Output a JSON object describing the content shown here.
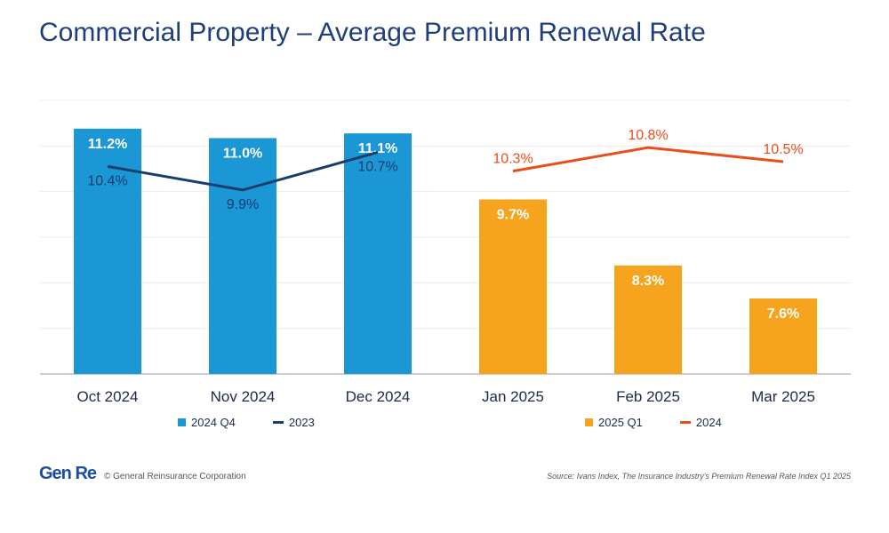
{
  "chart_data": {
    "type": "bar",
    "title": "Commercial Property – Average Premium Renewal Rate",
    "categories": [
      "Oct 2024",
      "Nov 2024",
      "Dec 2024",
      "Jan 2025",
      "Feb 2025",
      "Mar 2025"
    ],
    "ylim": [
      6.0,
      11.8
    ],
    "grid": true,
    "series": [
      {
        "name": "2024 Q4",
        "kind": "bar",
        "color": "#1b97d6",
        "values": [
          11.2,
          11.0,
          11.1,
          null,
          null,
          null
        ],
        "labels": [
          "11.2%",
          "11.0%",
          "11.1%",
          null,
          null,
          null
        ]
      },
      {
        "name": "2025 Q1",
        "kind": "bar",
        "color": "#f6a31e",
        "values": [
          null,
          null,
          null,
          9.7,
          8.3,
          7.6
        ],
        "labels": [
          null,
          null,
          null,
          "9.7%",
          "8.3%",
          "7.6%"
        ]
      },
      {
        "name": "2023",
        "kind": "line",
        "color": "#163e6c",
        "values": [
          10.4,
          9.9,
          10.7,
          null,
          null,
          null
        ],
        "labels": [
          "10.4%",
          "9.9%",
          "10.7%",
          null,
          null,
          null
        ]
      },
      {
        "name": "2024",
        "kind": "line",
        "color": "#e84e1b",
        "values": [
          null,
          null,
          null,
          10.3,
          10.8,
          10.5
        ],
        "labels": [
          null,
          null,
          null,
          "10.3%",
          "10.8%",
          "10.5%"
        ]
      }
    ]
  },
  "legend": {
    "left": [
      {
        "label": "2024 Q4",
        "color": "#1b97d6",
        "shape": "box"
      },
      {
        "label": "2023",
        "color": "#163e6c",
        "shape": "line"
      }
    ],
    "right": [
      {
        "label": "2025 Q1",
        "color": "#f6a31e",
        "shape": "box"
      },
      {
        "label": "2024",
        "color": "#e84e1b",
        "shape": "line"
      }
    ]
  },
  "footer": {
    "logo": "Gen Re",
    "copyright": "© General Reinsurance Corporation",
    "source": "Source: Ivans Index, The Insurance Industry's Premium Renewal Rate Index Q1 2025"
  }
}
